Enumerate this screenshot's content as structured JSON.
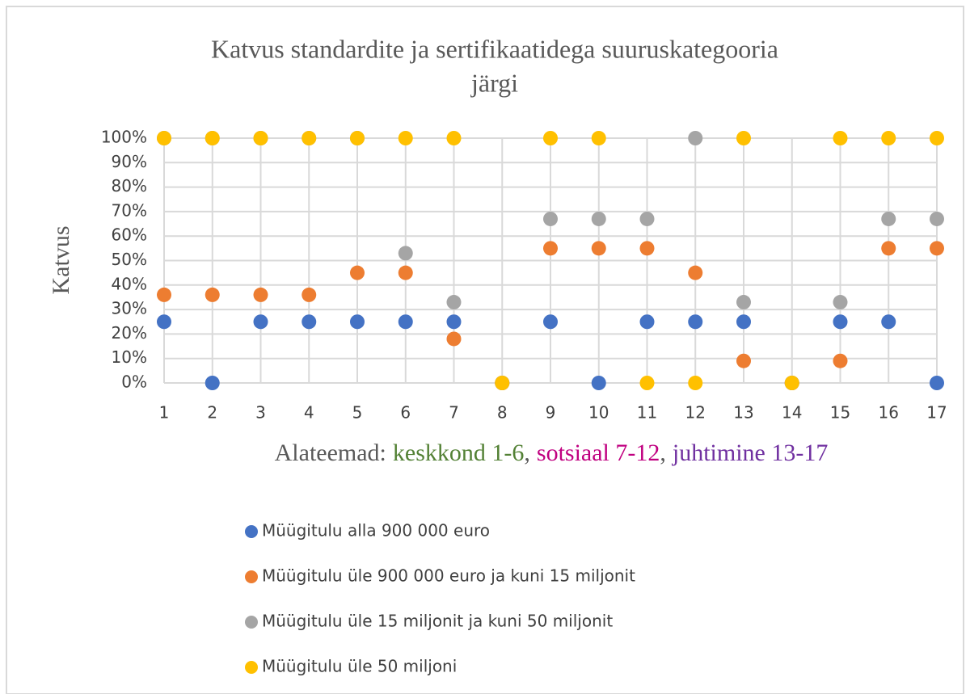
{
  "chart_data": {
    "type": "scatter",
    "title": [
      "Katvus standardite ja sertifikaatidega  suuruskategooria",
      "järgi"
    ],
    "ylabel": "Katvus",
    "xlabel_parts": [
      {
        "text": "Alateemad:",
        "color": "#595959"
      },
      {
        "text": "keskkond 1-6",
        "color": "#538135"
      },
      {
        "text": ",",
        "color": "#595959"
      },
      {
        "text": "sotsiaal 7-12",
        "color": "#c00080"
      },
      {
        "text": ",",
        "color": "#595959"
      },
      {
        "text": "juhtimine 13-17",
        "color": "#7030a0"
      }
    ],
    "categories": [
      "1",
      "2",
      "3",
      "4",
      "5",
      "6",
      "7",
      "8",
      "9",
      "10",
      "11",
      "12",
      "13",
      "14",
      "15",
      "16",
      "17"
    ],
    "ylim": [
      0,
      100
    ],
    "yticks": [
      {
        "value": 0,
        "label": "0%"
      },
      {
        "value": 10,
        "label": "10%"
      },
      {
        "value": 20,
        "label": "20%"
      },
      {
        "value": 30,
        "label": "30%"
      },
      {
        "value": 40,
        "label": "40%"
      },
      {
        "value": 50,
        "label": "50%"
      },
      {
        "value": 60,
        "label": "60%"
      },
      {
        "value": 70,
        "label": "70%"
      },
      {
        "value": 80,
        "label": "80%"
      },
      {
        "value": 90,
        "label": "90%"
      },
      {
        "value": 100,
        "label": "100%"
      }
    ],
    "grid": true,
    "legend": "bottom",
    "series": [
      {
        "name": "Müügitulu alla 900 000 euro",
        "color": "#4472c4",
        "values": [
          25,
          0,
          25,
          25,
          25,
          25,
          25,
          0,
          25,
          0,
          25,
          25,
          25,
          0,
          25,
          25,
          0
        ]
      },
      {
        "name": "Müügitulu üle 900 000 euro ja kuni 15 miljonit",
        "color": "#ed7d31",
        "values": [
          36,
          36,
          36,
          36,
          45,
          45,
          18,
          0,
          55,
          55,
          55,
          45,
          9,
          0,
          9,
          55,
          55
        ]
      },
      {
        "name": "Müügitulu üle 15 miljonit ja kuni 50 miljonit",
        "color": "#a5a5a5",
        "values": [
          100,
          100,
          100,
          100,
          100,
          53,
          33,
          0,
          67,
          67,
          67,
          100,
          33,
          0,
          33,
          67,
          67
        ]
      },
      {
        "name": "Müügitulu üle 50 miljoni",
        "color": "#ffc000",
        "values": [
          100,
          100,
          100,
          100,
          100,
          100,
          100,
          0,
          100,
          100,
          0,
          0,
          100,
          0,
          100,
          100,
          100
        ]
      }
    ]
  }
}
